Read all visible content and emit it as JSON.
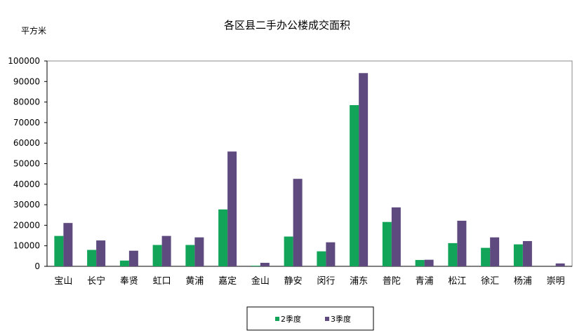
{
  "chart_data": {
    "type": "bar",
    "title": "各区县二手办公楼成交面积",
    "ylabel": "平方米",
    "xlabel": "",
    "ylim": [
      0,
      100000
    ],
    "yticks": [
      "0",
      "10000",
      "20000",
      "30000",
      "40000",
      "50000",
      "60000",
      "70000",
      "80000",
      "90000",
      "100000"
    ],
    "categories": [
      "宝山",
      "长宁",
      "奉贤",
      "虹口",
      "黄浦",
      "嘉定",
      "金山",
      "静安",
      "闵行",
      "浦东",
      "普陀",
      "青浦",
      "松江",
      "徐汇",
      "杨浦",
      "崇明"
    ],
    "series": [
      {
        "name": "2季度",
        "color": "#12a55a",
        "values": [
          14800,
          8000,
          2800,
          10400,
          10400,
          27700,
          300,
          14500,
          7300,
          78500,
          21600,
          3100,
          11300,
          9000,
          10700,
          0
        ]
      },
      {
        "name": "3季度",
        "color": "#5e4a7e",
        "values": [
          21100,
          12600,
          7600,
          14800,
          14100,
          55900,
          1700,
          42600,
          11700,
          94100,
          28700,
          3200,
          22200,
          14100,
          12300,
          1400
        ]
      }
    ],
    "grid": false,
    "legend_position": "bottom"
  }
}
